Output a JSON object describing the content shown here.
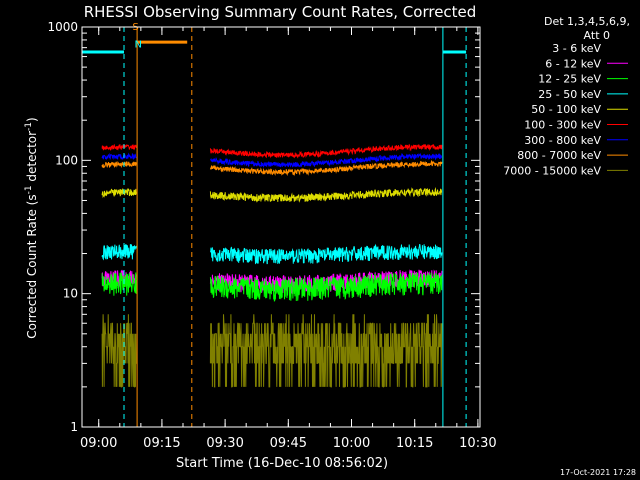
{
  "chart_data": {
    "type": "line",
    "title": "RHESSI Observing Summary Count Rates, Corrected",
    "xlabel": "Start Time (16-Dec-10 08:56:02)",
    "ylabel_main": "Corrected Count Rate (s",
    "ylabel_sup1": "-1",
    "ylabel_mid": " detector",
    "ylabel_sup2": "-1",
    "ylabel_end": ")",
    "y_scale": "log",
    "ylim": [
      1,
      1000
    ],
    "xlim_min": [
      56.03,
      95.5
    ],
    "x_ticks": [
      {
        "min": 60,
        "label": "09:00"
      },
      {
        "min": 75,
        "label": "09:15"
      },
      {
        "min": 90,
        "label": "09:30"
      },
      {
        "min": 105,
        "label": "09:45"
      },
      {
        "min": 120,
        "label": "10:00"
      },
      {
        "min": 135,
        "label": "10:15"
      },
      {
        "min": 150,
        "label": "10:30"
      }
    ],
    "y_ticks": [
      {
        "value": 1,
        "label": "1"
      },
      {
        "value": 10,
        "label": "10"
      },
      {
        "value": 100,
        "label": "100"
      },
      {
        "value": 1000,
        "label": "1000"
      }
    ],
    "legend": {
      "placement": "top-right, outside",
      "header1": "Det 1,3,4,5,6,9,",
      "header2": "Att 0"
    },
    "segments_min": [
      [
        60.8,
        69.0
      ],
      [
        86.5,
        141.5
      ]
    ],
    "series": [
      {
        "name": "3 - 6 keV",
        "color": "#000000",
        "base": 3.5,
        "mod": 0.0,
        "noise": 0.3
      },
      {
        "name": "6 - 12 keV",
        "color": "#ff00ff",
        "base": 12.5,
        "mod": -0.05,
        "noise": 0.07
      },
      {
        "name": "12 - 25 keV",
        "color": "#00ff00",
        "base": 11.5,
        "mod": -0.05,
        "noise": 0.09
      },
      {
        "name": "25 - 50 keV",
        "color": "#00ffff",
        "base": 20,
        "mod": -0.04,
        "noise": 0.06
      },
      {
        "name": "50 - 100 keV",
        "color": "#dddd00",
        "base": 55,
        "mod": -0.05,
        "noise": 0.03
      },
      {
        "name": "100 - 300 keV",
        "color": "#ff0000",
        "base": 118,
        "mod": -0.07,
        "noise": 0.02
      },
      {
        "name": "300 - 800 keV",
        "color": "#0000ff",
        "base": 100,
        "mod": -0.07,
        "noise": 0.02
      },
      {
        "name": "800 - 7000 keV",
        "color": "#ff8c00",
        "base": 88,
        "mod": -0.07,
        "noise": 0.02
      },
      {
        "name": "7000 - 15000 keV",
        "color": "#808000",
        "base": 4.0,
        "mod": 0.0,
        "noise": 0.22
      }
    ],
    "markers": [
      {
        "type": "dashed",
        "color": "#00ffff",
        "min": 66.0
      },
      {
        "type": "solid",
        "color": "#ff8c00",
        "min": 69.1
      },
      {
        "type": "dashed",
        "color": "#ff8c00",
        "min": 82.1
      },
      {
        "type": "solid",
        "color": "#00ffff",
        "min": 141.7
      },
      {
        "type": "dashed",
        "color": "#00ffff",
        "min": 147.2
      }
    ],
    "flag_bars": [
      {
        "color": "#00ffff",
        "y": 650,
        "from": 56.03,
        "to": 66.0
      },
      {
        "color": "#ff8c00",
        "y": 770,
        "from": 69.1,
        "to": 81.0
      },
      {
        "color": "#00ffff",
        "y": 650,
        "from": 141.7,
        "to": 147.2
      }
    ],
    "flag_labels": [
      {
        "text": "S",
        "color": "#ff8c00",
        "min": 68.0,
        "y": 950
      },
      {
        "text": "N",
        "color": "#00ffff",
        "min": 68.5,
        "y": 700
      }
    ]
  },
  "footer": {
    "timestamp": "17-Oct-2021 17:28"
  }
}
